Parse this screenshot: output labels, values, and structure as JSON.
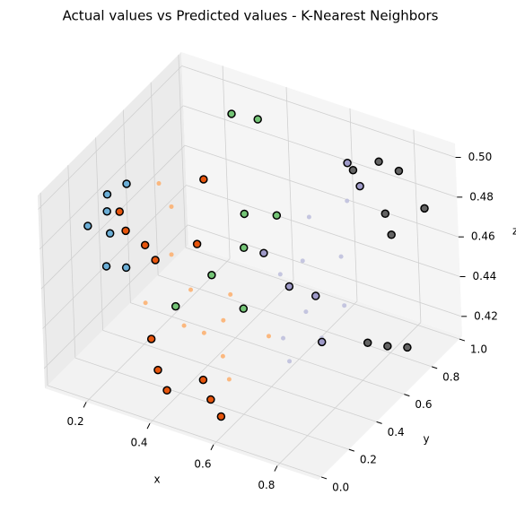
{
  "chart_data": {
    "type": "scatter3d",
    "title": "Actual values vs Predicted values - K-Nearest Neighbors",
    "xlabel": "x",
    "ylabel": "y",
    "zlabel": "z",
    "xlim": [
      0.07,
      0.93
    ],
    "ylim": [
      -0.02,
      1.02
    ],
    "zlim": [
      0.41,
      0.507
    ],
    "xticks": [
      0.2,
      0.4,
      0.6,
      0.8
    ],
    "yticks": [
      {
        "value": 0,
        "label": "0.0"
      },
      0.2,
      0.4,
      0.6,
      0.8,
      {
        "value": 1,
        "label": "1.0"
      }
    ],
    "zticks": [
      0.42,
      0.44,
      0.46,
      0.48,
      {
        "value": 0.5,
        "label": "0.50"
      }
    ],
    "grid": true,
    "series": [
      {
        "color": "#e6550d",
        "marker": "ring",
        "x": [
          0.16,
          0.2,
          0.26,
          0.3,
          0.36,
          0.4,
          0.44,
          0.52,
          0.56,
          0.6,
          0.34,
          0.38
        ],
        "y": [
          0.35,
          0.3,
          0.3,
          0.28,
          0.1,
          0.05,
          0.02,
          0.1,
          0.06,
          0.04,
          0.55,
          0.4
        ],
        "z": [
          0.478,
          0.474,
          0.47,
          0.466,
          0.442,
          0.432,
          0.426,
          0.43,
          0.425,
          0.42,
          0.49,
          0.47
        ]
      },
      {
        "color": "#fdae6b",
        "marker": "dot",
        "x": [
          0.22,
          0.28,
          0.32,
          0.42,
          0.46,
          0.5,
          0.54,
          0.58,
          0.62,
          0.48,
          0.4,
          0.3
        ],
        "y": [
          0.5,
          0.45,
          0.35,
          0.2,
          0.25,
          0.3,
          0.2,
          0.15,
          0.35,
          0.4,
          0.3,
          0.2
        ],
        "z": [
          0.485,
          0.48,
          0.465,
          0.445,
          0.44,
          0.445,
          0.436,
          0.43,
          0.44,
          0.45,
          0.455,
          0.45
        ]
      },
      {
        "color": "#6baed6",
        "marker": "ring",
        "x": [
          0.08,
          0.1,
          0.12,
          0.14,
          0.18,
          0.22,
          0.15
        ],
        "y": [
          0.3,
          0.4,
          0.35,
          0.45,
          0.2,
          0.25,
          0.3
        ],
        "z": [
          0.47,
          0.48,
          0.476,
          0.484,
          0.462,
          0.46,
          0.47
        ]
      },
      {
        "color": "#74c476",
        "marker": "ring",
        "x": [
          0.3,
          0.36,
          0.42,
          0.46,
          0.52,
          0.5,
          0.4,
          0.35
        ],
        "y": [
          0.85,
          0.9,
          0.65,
          0.55,
          0.4,
          0.7,
          0.45,
          0.3
        ],
        "z": [
          0.5,
          0.497,
          0.47,
          0.462,
          0.445,
          0.47,
          0.452,
          0.444
        ]
      },
      {
        "color": "#bcbddc",
        "marker": "dot",
        "x": [
          0.55,
          0.6,
          0.65,
          0.7,
          0.72,
          0.62,
          0.68,
          0.75,
          0.58,
          0.66
        ],
        "y": [
          0.6,
          0.65,
          0.55,
          0.7,
          0.5,
          0.45,
          0.8,
          0.6,
          0.75,
          0.4
        ],
        "z": [
          0.45,
          0.456,
          0.44,
          0.46,
          0.434,
          0.432,
          0.48,
          0.445,
          0.47,
          0.426
        ]
      },
      {
        "color": "#9e9ac8",
        "marker": "ring",
        "x": [
          0.5,
          0.6,
          0.66,
          0.72,
          0.64,
          0.7
        ],
        "y": [
          0.6,
          0.55,
          0.6,
          0.5,
          0.9,
          0.85
        ],
        "z": [
          0.458,
          0.45,
          0.445,
          0.432,
          0.49,
          0.485
        ]
      },
      {
        "color": "#636363",
        "marker": "ring",
        "x": [
          0.68,
          0.74,
          0.8,
          0.84,
          0.88,
          0.82,
          0.86,
          0.9,
          0.78
        ],
        "y": [
          0.85,
          0.9,
          0.8,
          0.75,
          0.9,
          0.6,
          0.65,
          0.7,
          0.95
        ],
        "z": [
          0.492,
          0.496,
          0.48,
          0.475,
          0.48,
          0.43,
          0.427,
          0.425,
          0.49
        ]
      }
    ]
  }
}
